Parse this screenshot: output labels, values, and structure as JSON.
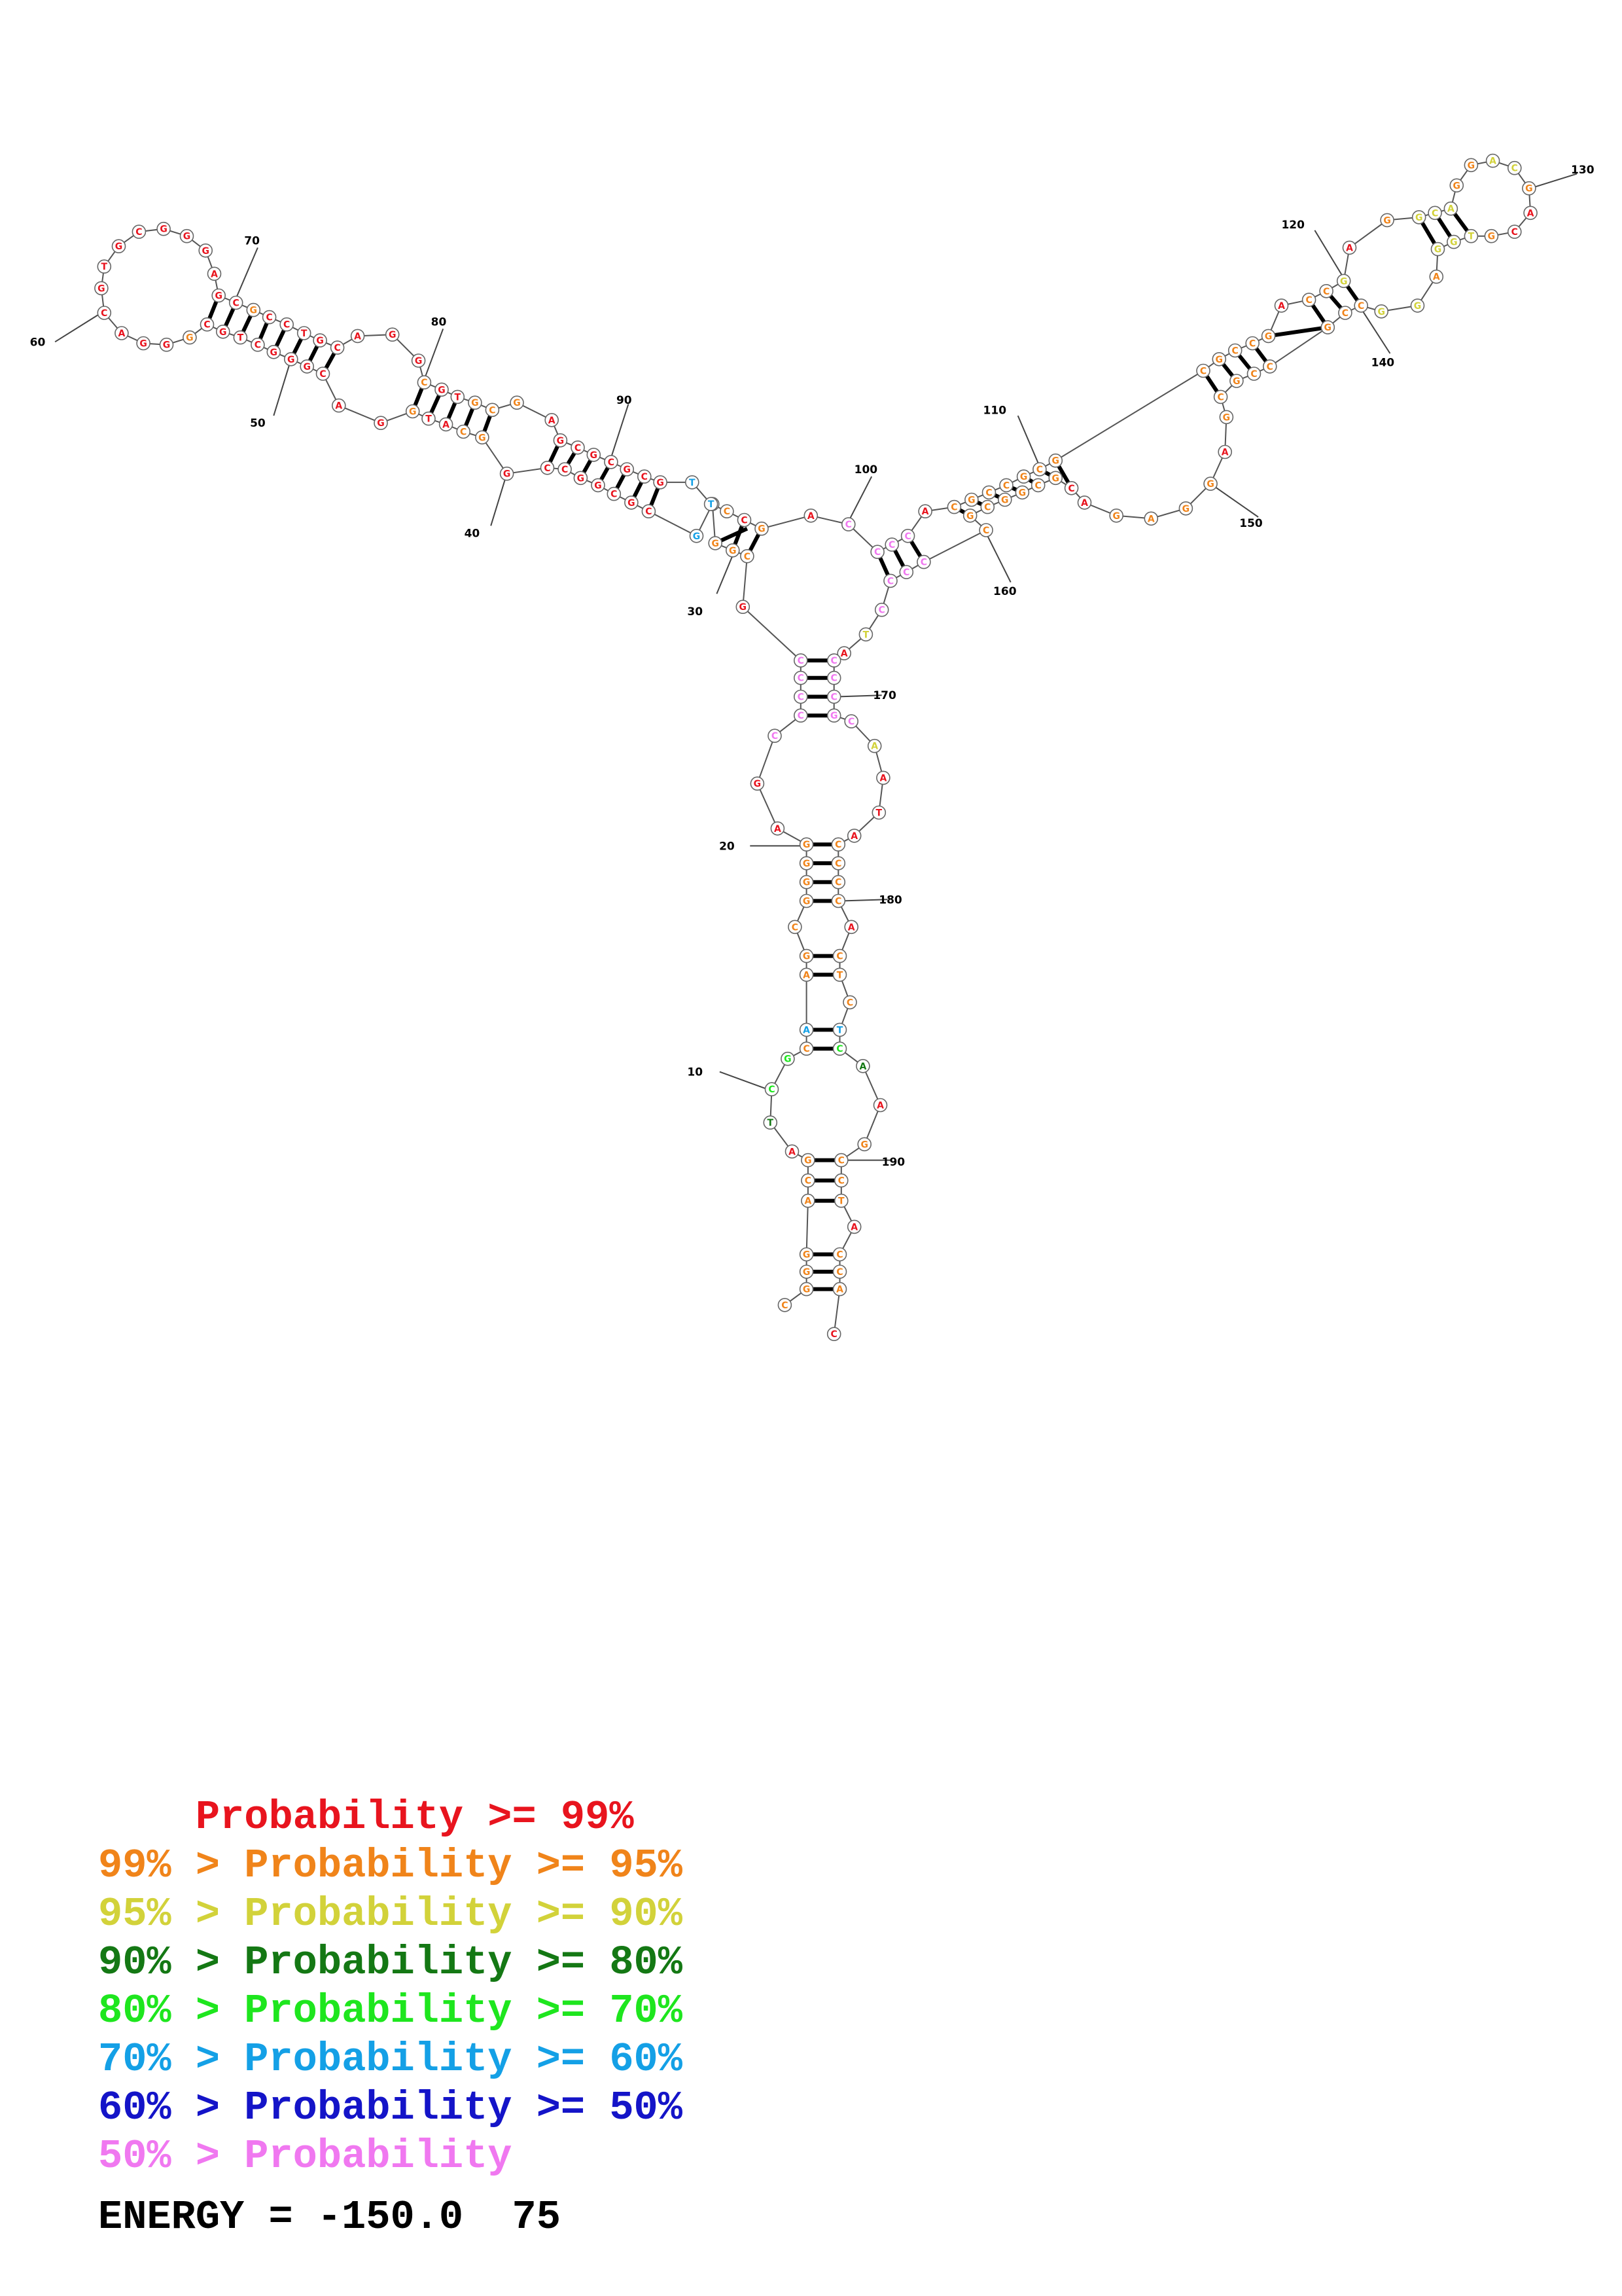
{
  "diagram": {
    "position_labels": [
      "10",
      "20",
      "30",
      "40",
      "50",
      "60",
      "70",
      "80",
      "90",
      "100",
      "110",
      "120",
      "130",
      "140",
      "150",
      "160",
      "170",
      "180",
      "190"
    ]
  },
  "legend": {
    "rows": [
      {
        "prefix": "    ",
        "text": "Probability >= 99%",
        "color": "#e8141e"
      },
      {
        "prefix": "99% > ",
        "text": "Probability >= 95%",
        "color": "#f0841a"
      },
      {
        "prefix": "95% > ",
        "text": "Probability >= 90%",
        "color": "#d2d23a"
      },
      {
        "prefix": "90% > ",
        "text": "Probability >= 80%",
        "color": "#147814"
      },
      {
        "prefix": "80% > ",
        "text": "Probability >= 70%",
        "color": "#1ee61e"
      },
      {
        "prefix": "70% > ",
        "text": "Probability >= 60%",
        "color": "#14a0e6"
      },
      {
        "prefix": "60% > ",
        "text": "Probability >= 50%",
        "color": "#1414c8"
      },
      {
        "prefix": "50% > ",
        "text": "Probability",
        "color": "#f078f0"
      }
    ],
    "energy": "ENERGY = -150.0  75"
  }
}
